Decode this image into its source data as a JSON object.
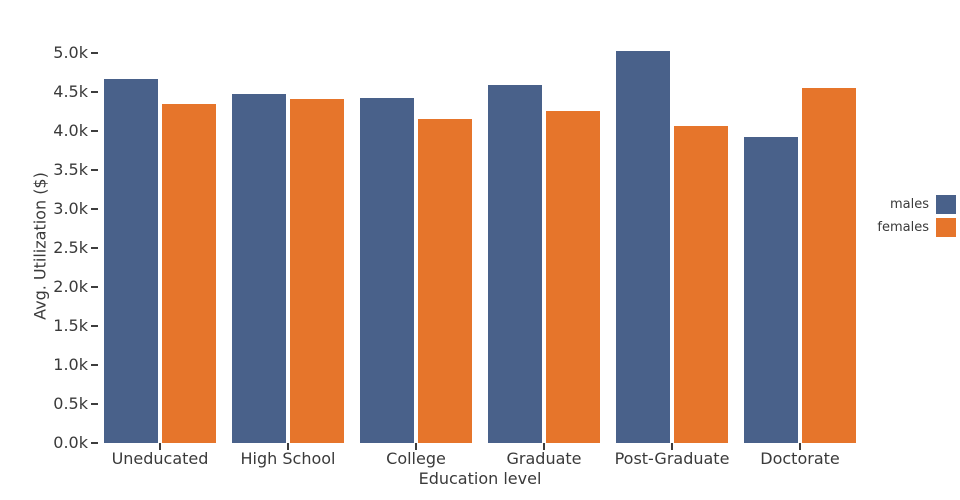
{
  "chart_data": {
    "type": "bar",
    "title": "",
    "xlabel": "Education level",
    "ylabel": "Avg. Utilization ($)",
    "categories": [
      "Uneducated",
      "High School",
      "College",
      "Graduate",
      "Post-Graduate",
      "Doctorate"
    ],
    "series": [
      {
        "name": "males",
        "color": "#49618A",
        "values": [
          4670,
          4470,
          4420,
          4590,
          5030,
          3920
        ]
      },
      {
        "name": "females",
        "color": "#E6752B",
        "values": [
          4350,
          4410,
          4150,
          4260,
          4060,
          4550
        ]
      }
    ],
    "ylim": [
      0,
      5000
    ],
    "ytick_step": 500,
    "ytick_labels": [
      "0.0k",
      "0.5k",
      "1.0k",
      "1.5k",
      "2.0k",
      "2.5k",
      "3.0k",
      "3.5k",
      "4.0k",
      "4.5k",
      "5.0k"
    ],
    "grid": false,
    "legend_position": "right",
    "background_color": "#ffffff",
    "tick_color": "#3d3d3d",
    "text_color": "#3a3a3a"
  }
}
